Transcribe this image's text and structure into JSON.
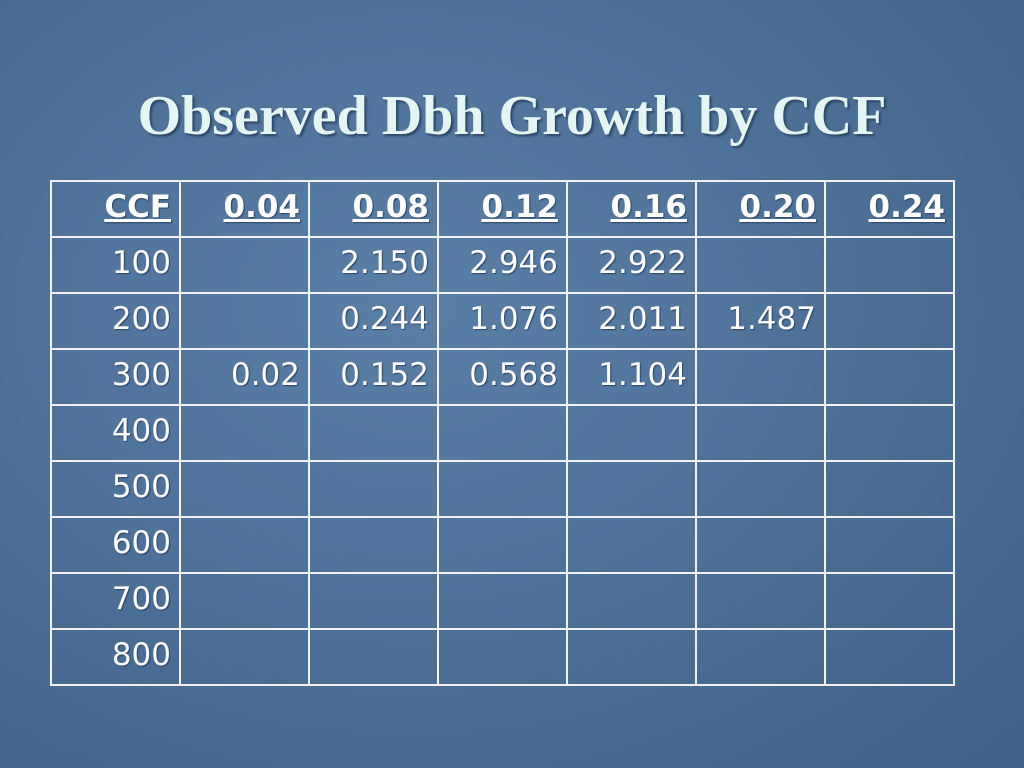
{
  "title": "Observed Dbh Growth by CCF",
  "table": {
    "header": [
      "CCF",
      "0.04",
      "0.08",
      "0.12",
      "0.16",
      "0.20",
      "0.24"
    ],
    "rows": [
      [
        "100",
        null,
        "2.150",
        "2.946",
        "2.922",
        null,
        null
      ],
      [
        "200",
        null,
        "0.244",
        "1.076",
        "2.011",
        "1.487",
        null
      ],
      [
        "300",
        "0.02",
        "0.152",
        "0.568",
        "1.104",
        null,
        null
      ],
      [
        "400",
        null,
        null,
        null,
        null,
        null,
        null
      ],
      [
        "500",
        null,
        null,
        null,
        null,
        null,
        null
      ],
      [
        "600",
        null,
        null,
        null,
        null,
        null,
        null
      ],
      [
        "700",
        null,
        null,
        null,
        null,
        null,
        null
      ],
      [
        "800",
        null,
        null,
        null,
        null,
        null,
        null
      ]
    ]
  }
}
